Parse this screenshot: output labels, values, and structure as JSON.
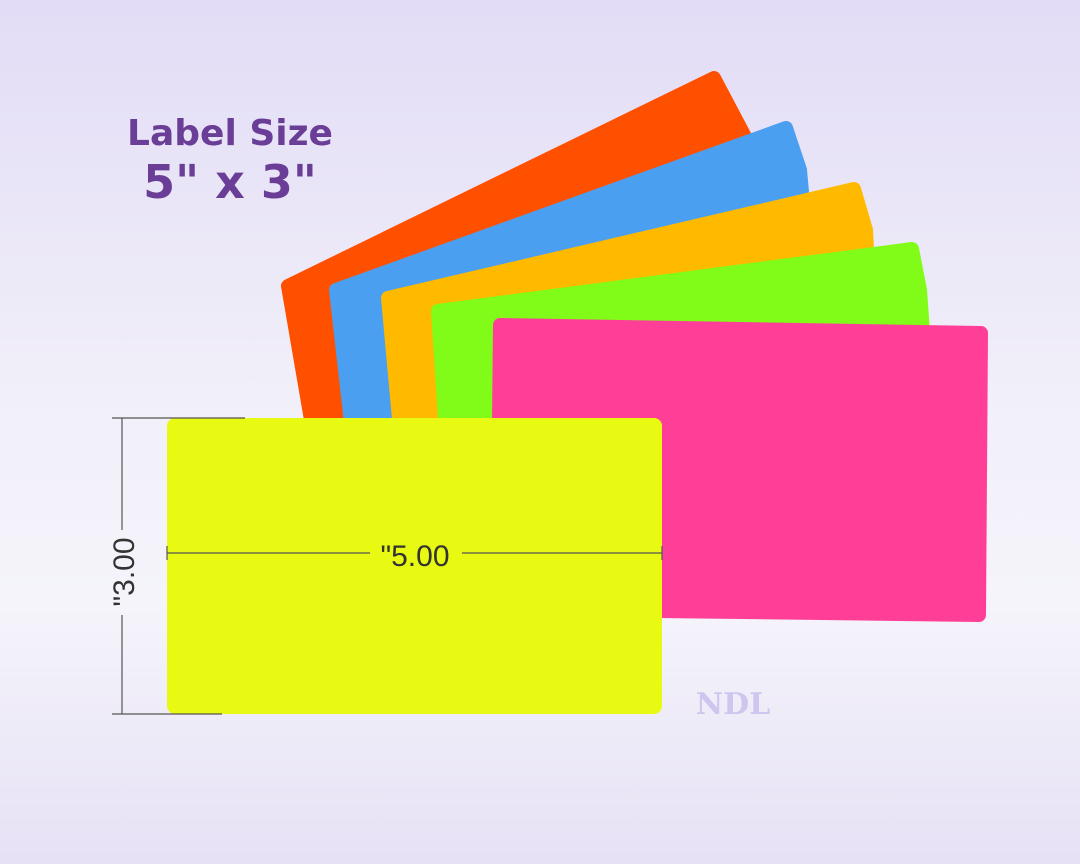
{
  "heading": {
    "line1": "Label Size",
    "line2": "5\" x 3\""
  },
  "dimensions": {
    "width_label": "\"5.00",
    "height_label": "\"3.00"
  },
  "watermark": "NDL",
  "label_colors": {
    "orange": "#ff5000",
    "blue": "#4a9ff0",
    "amber": "#ffba00",
    "green": "#80fc18",
    "pink": "#ff3f97",
    "yellow": "#e8fa12"
  }
}
